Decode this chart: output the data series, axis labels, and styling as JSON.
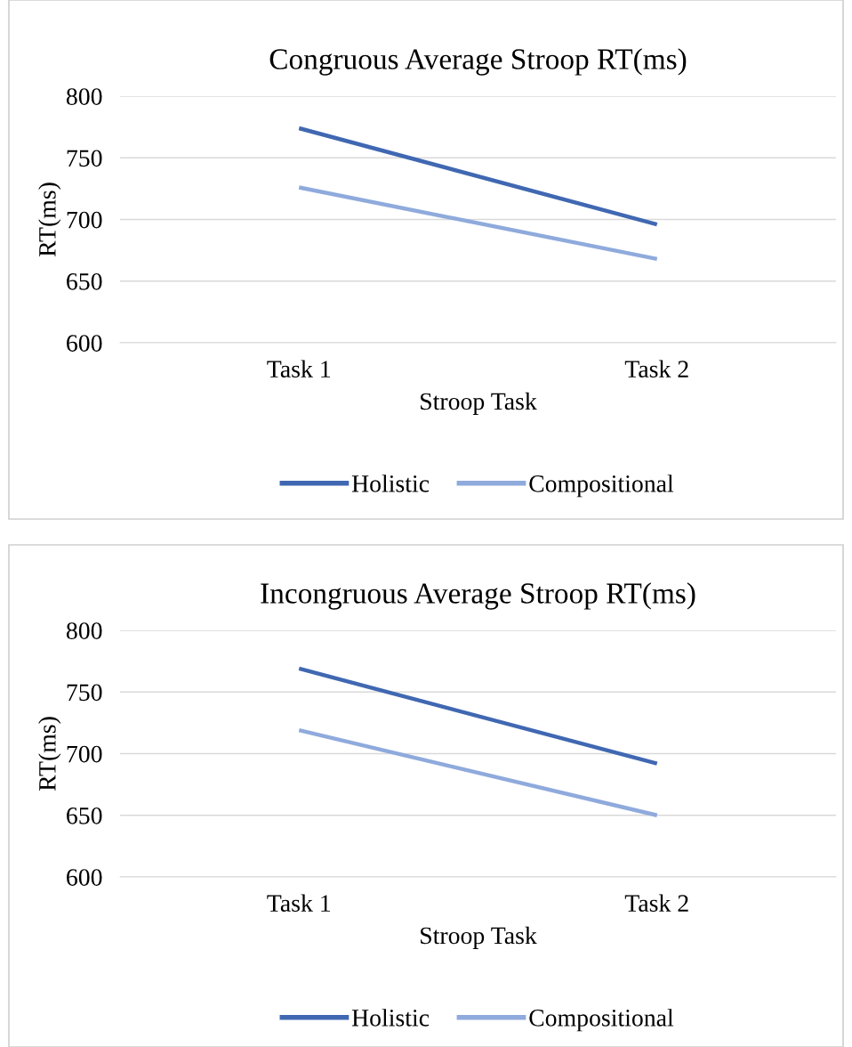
{
  "chart_data": [
    {
      "type": "line",
      "title": "Congruous Average Stroop RT(ms)",
      "xlabel": "Stroop Task",
      "ylabel": "RT(ms)",
      "categories": [
        "Task 1",
        "Task 2"
      ],
      "ylim": [
        600,
        800
      ],
      "yticks": [
        600,
        650,
        700,
        750,
        800
      ],
      "grid": "y",
      "legend": "bottom",
      "marker": "none",
      "line_style": "solid",
      "series": [
        {
          "name": "Holistic",
          "color": "#4068b2",
          "values": [
            774,
            696
          ]
        },
        {
          "name": "Compositional",
          "color": "#8faadc",
          "values": [
            726,
            668
          ]
        }
      ]
    },
    {
      "type": "line",
      "title": "Incongruous Average Stroop RT(ms)",
      "xlabel": "Stroop Task",
      "ylabel": "RT(ms)",
      "categories": [
        "Task 1",
        "Task 2"
      ],
      "ylim": [
        600,
        800
      ],
      "yticks": [
        600,
        650,
        700,
        750,
        800
      ],
      "grid": "y",
      "legend": "bottom",
      "marker": "none",
      "line_style": "solid",
      "series": [
        {
          "name": "Holistic",
          "color": "#4068b2",
          "values": [
            769,
            692
          ]
        },
        {
          "name": "Compositional",
          "color": "#8faadc",
          "values": [
            719,
            650
          ]
        }
      ]
    }
  ]
}
